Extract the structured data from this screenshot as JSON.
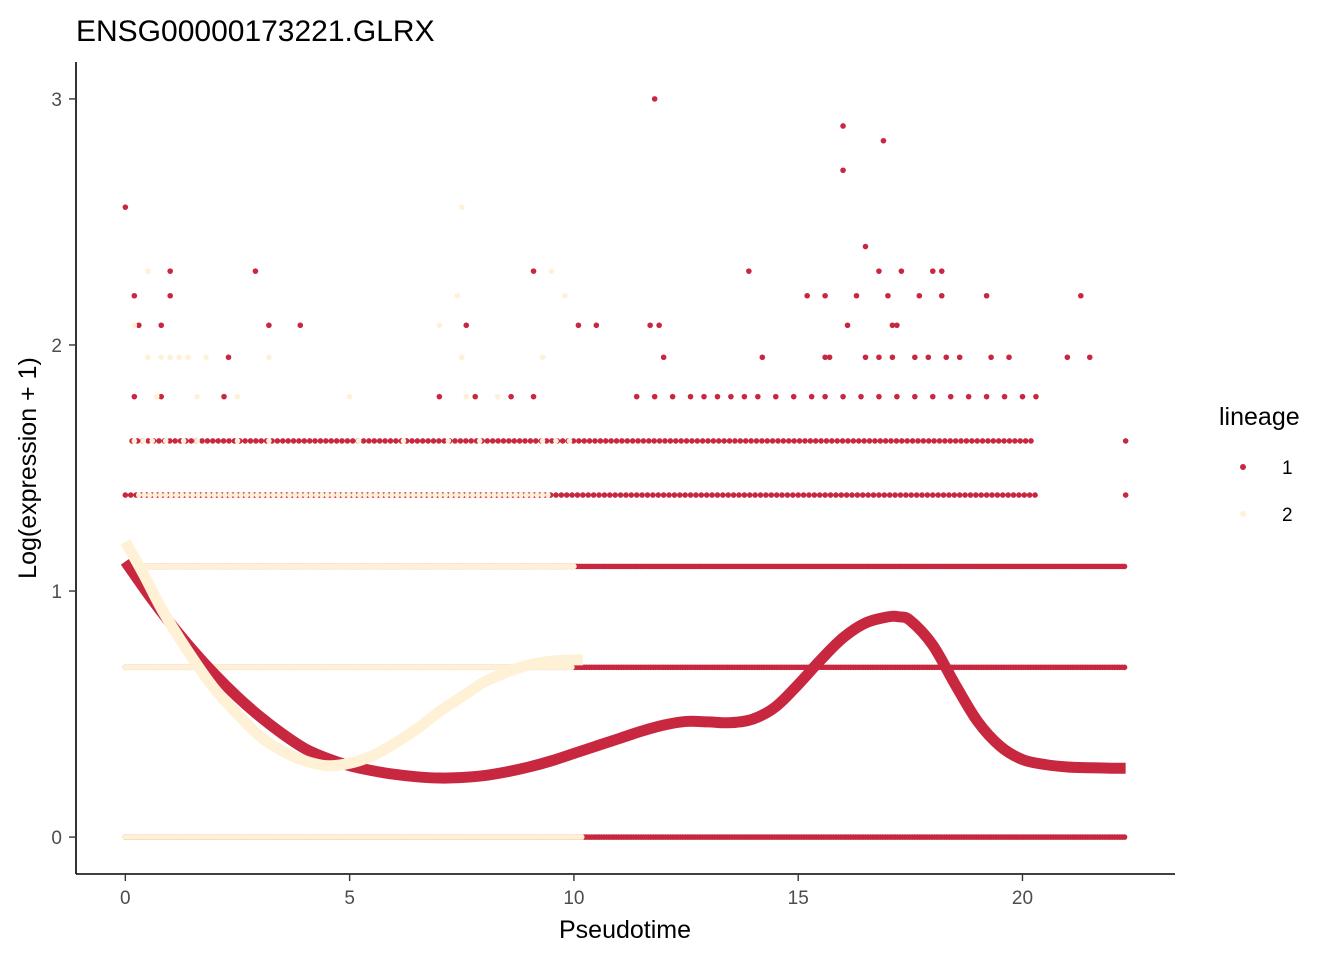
{
  "chart_data": {
    "type": "scatter",
    "title": "ENSG00000173221.GLRX",
    "xlabel": "Pseudotime",
    "ylabel": "Log(expression + 1)",
    "xlim": [
      -1.1,
      23.4
    ],
    "ylim": [
      -0.15,
      3.15
    ],
    "x_ticks": [
      0,
      5,
      10,
      15,
      20
    ],
    "y_ticks": [
      0,
      1,
      2,
      3
    ],
    "legend": {
      "title": "lineage",
      "position": "right",
      "labels": [
        "1",
        "2"
      ]
    },
    "colors": {
      "lineage1": "#c8283f",
      "lineage2": "#fff1d6",
      "axis": "#000000",
      "tick_text": "#4d4d4d"
    },
    "series": [
      {
        "name": "1",
        "kind": "points",
        "levels": [
          {
            "y": 0.0,
            "segments": [
              [
                0.0,
                22.3
              ]
            ]
          },
          {
            "y": 0.69,
            "segments": [
              [
                0.0,
                22.3
              ]
            ]
          },
          {
            "y": 1.1,
            "segments": [
              [
                0.0,
                22.3
              ]
            ]
          },
          {
            "y": 1.39,
            "segments": [
              [
                0.0,
                20.3
              ],
              [
                22.3,
                22.3
              ]
            ]
          },
          {
            "y": 1.61,
            "segments": [
              [
                0.15,
                20.2
              ],
              [
                22.3,
                22.3
              ]
            ]
          },
          {
            "y": 1.79,
            "points": [
              0.2,
              0.8,
              2.2,
              7.0,
              7.8,
              8.6,
              9.1,
              11.4,
              11.8,
              12.2,
              12.6,
              12.9,
              13.2,
              13.5,
              13.8,
              14.1,
              14.5,
              14.9,
              15.3,
              15.6,
              16.0,
              16.4,
              16.8,
              17.2,
              17.6,
              18.0,
              18.4,
              18.8,
              19.2,
              19.6,
              20.0,
              20.3
            ]
          },
          {
            "y": 1.95,
            "points": [
              2.3,
              12.0,
              14.2,
              15.6,
              15.7,
              16.5,
              16.8,
              17.1,
              17.6,
              17.9,
              18.3,
              18.6,
              19.3,
              19.7,
              21.0,
              21.5
            ]
          },
          {
            "y": 2.08,
            "points": [
              0.3,
              0.8,
              3.2,
              3.9,
              7.6,
              11.7,
              11.9,
              10.1,
              10.5,
              16.1,
              17.1,
              17.2
            ]
          },
          {
            "y": 2.2,
            "points": [
              0.2,
              1.0,
              15.2,
              15.6,
              16.3,
              17.0,
              17.7,
              18.2,
              19.2,
              21.3
            ]
          },
          {
            "y": 2.3,
            "points": [
              1.0,
              2.9,
              9.1,
              13.9,
              16.8,
              17.3,
              18.0,
              18.2
            ]
          },
          {
            "y": 2.4,
            "points": [
              16.5
            ]
          },
          {
            "y": 2.56,
            "points": [
              0.0
            ]
          },
          {
            "y": 2.71,
            "points": [
              16.0
            ]
          },
          {
            "y": 2.83,
            "points": [
              16.9
            ]
          },
          {
            "y": 2.89,
            "points": [
              16.0
            ]
          },
          {
            "y": 3.0,
            "points": [
              11.8
            ]
          }
        ]
      },
      {
        "name": "2",
        "kind": "points",
        "levels": [
          {
            "y": 0.0,
            "segments": [
              [
                0.0,
                10.2
              ]
            ]
          },
          {
            "y": 0.69,
            "segments": [
              [
                0.0,
                10.0
              ]
            ]
          },
          {
            "y": 1.1,
            "segments": [
              [
                0.1,
                10.0
              ]
            ]
          },
          {
            "y": 1.39,
            "segments": [
              [
                0.3,
                9.5
              ]
            ]
          },
          {
            "y": 1.61,
            "points": [
              0.2,
              0.4,
              0.6,
              0.9,
              1.3,
              1.6,
              2.5,
              3.2,
              5.2,
              6.2,
              7.2,
              7.9,
              9.3,
              9.6,
              9.9
            ]
          },
          {
            "y": 1.79,
            "points": [
              0.7,
              1.6,
              2.5,
              5.0,
              7.6,
              8.3
            ]
          },
          {
            "y": 1.95,
            "points": [
              0.5,
              0.8,
              1.0,
              1.2,
              1.4,
              1.8,
              3.2,
              7.5,
              9.3
            ]
          },
          {
            "y": 2.08,
            "points": [
              0.2,
              7.0
            ]
          },
          {
            "y": 2.2,
            "points": [
              7.4,
              9.8
            ]
          },
          {
            "y": 2.3,
            "points": [
              0.5,
              9.5
            ]
          },
          {
            "y": 2.56,
            "points": [
              7.5
            ]
          }
        ]
      },
      {
        "name": "1",
        "kind": "smooth",
        "x": [
          0.0,
          0.5,
          1.0,
          1.5,
          2.0,
          2.5,
          3.0,
          3.5,
          4.0,
          4.5,
          5.0,
          5.5,
          6.0,
          6.5,
          7.0,
          7.5,
          8.0,
          8.5,
          9.0,
          9.5,
          10.0,
          10.5,
          11.0,
          11.5,
          12.0,
          12.5,
          13.0,
          13.5,
          14.0,
          14.5,
          15.0,
          15.5,
          16.0,
          16.5,
          17.0,
          17.25,
          17.5,
          18.0,
          18.5,
          19.0,
          19.5,
          20.0,
          20.5,
          21.0,
          21.5,
          22.0,
          22.3
        ],
        "y": [
          1.12,
          0.99,
          0.87,
          0.76,
          0.66,
          0.57,
          0.49,
          0.42,
          0.36,
          0.32,
          0.29,
          0.27,
          0.255,
          0.245,
          0.24,
          0.242,
          0.25,
          0.265,
          0.285,
          0.31,
          0.34,
          0.37,
          0.4,
          0.43,
          0.455,
          0.47,
          0.468,
          0.465,
          0.48,
          0.53,
          0.62,
          0.72,
          0.81,
          0.87,
          0.895,
          0.895,
          0.88,
          0.78,
          0.62,
          0.47,
          0.37,
          0.315,
          0.295,
          0.285,
          0.282,
          0.28,
          0.28
        ]
      },
      {
        "name": "2",
        "kind": "smooth",
        "x": [
          0.0,
          0.4,
          0.8,
          1.2,
          1.6,
          2.0,
          2.5,
          3.0,
          3.5,
          4.0,
          4.5,
          5.0,
          5.5,
          6.0,
          6.5,
          7.0,
          7.5,
          8.0,
          8.5,
          9.0,
          9.5,
          10.0,
          10.2
        ],
        "y": [
          1.2,
          1.07,
          0.93,
          0.81,
          0.7,
          0.6,
          0.5,
          0.41,
          0.35,
          0.31,
          0.29,
          0.3,
          0.33,
          0.38,
          0.44,
          0.51,
          0.57,
          0.63,
          0.67,
          0.7,
          0.715,
          0.72,
          0.72
        ]
      }
    ]
  }
}
